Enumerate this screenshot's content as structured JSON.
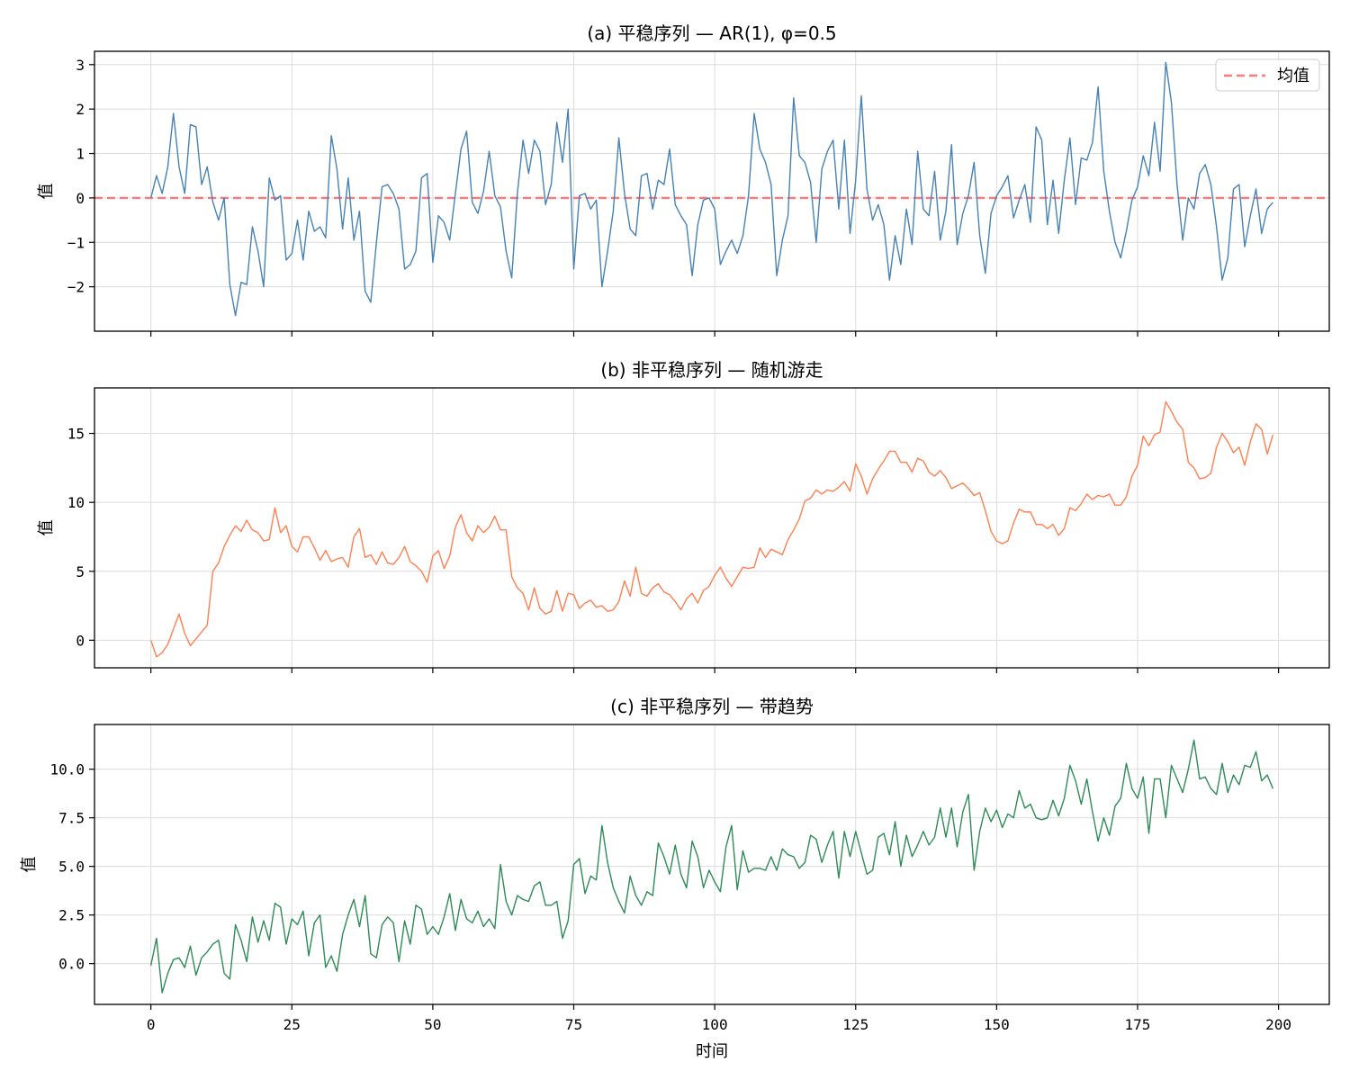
{
  "figure": {
    "xlabel": "时间",
    "grid": true,
    "sharex": true,
    "x_ticks": [
      0,
      25,
      50,
      75,
      100,
      125,
      150,
      175,
      200
    ],
    "xlim": [
      -10,
      209
    ]
  },
  "chart_data": [
    {
      "type": "line",
      "title": "(a) 平稳序列 — AR(1), φ=0.5",
      "ylabel": "值",
      "ylim": [
        -3.0,
        3.3
      ],
      "y_ticks": [
        -2,
        -1,
        0,
        1,
        2,
        3
      ],
      "y_tick_labels": [
        "−2",
        "−1",
        "0",
        "1",
        "2",
        "3"
      ],
      "color": "#4682b4",
      "reference_line": {
        "value": 0,
        "color": "#ff6b6b",
        "style": "dashed",
        "legend": "均值"
      },
      "legend_position": "top-right",
      "values": [
        0.0,
        0.5,
        0.1,
        0.7,
        1.9,
        0.7,
        0.1,
        1.65,
        1.6,
        0.3,
        0.7,
        -0.1,
        -0.5,
        -0.0,
        -1.95,
        -2.65,
        -1.9,
        -1.95,
        -0.65,
        -1.2,
        -2.0,
        0.45,
        -0.05,
        0.05,
        -1.4,
        -1.25,
        -0.5,
        -1.4,
        -0.3,
        -0.75,
        -0.65,
        -0.9,
        1.4,
        0.65,
        -0.7,
        0.45,
        -0.95,
        -0.3,
        -2.1,
        -2.35,
        -1.0,
        0.25,
        0.3,
        0.1,
        -0.25,
        -1.6,
        -1.5,
        -1.2,
        0.45,
        0.55,
        -1.45,
        -0.4,
        -0.55,
        -0.95,
        0.1,
        1.1,
        1.5,
        -0.1,
        -0.35,
        0.15,
        1.05,
        0.05,
        -0.2,
        -1.2,
        -1.8,
        0.1,
        1.3,
        0.55,
        1.3,
        1.05,
        -0.15,
        0.3,
        1.7,
        0.8,
        2.0,
        -1.6,
        0.05,
        0.1,
        -0.25,
        -0.05,
        -2.0,
        -1.2,
        -0.3,
        1.35,
        0.1,
        -0.7,
        -0.85,
        0.5,
        0.55,
        -0.25,
        0.4,
        0.3,
        1.1,
        -0.15,
        -0.4,
        -0.6,
        -1.75,
        -0.6,
        -0.05,
        0.0,
        -0.25,
        -1.5,
        -1.2,
        -0.95,
        -1.25,
        -0.85,
        0.05,
        1.9,
        1.1,
        0.8,
        0.3,
        -1.75,
        -0.95,
        -0.4,
        2.25,
        0.95,
        0.8,
        0.35,
        -1.0,
        0.65,
        1.05,
        1.3,
        -0.25,
        1.3,
        -0.8,
        0.4,
        2.3,
        0.2,
        -0.5,
        -0.15,
        -0.6,
        -1.85,
        -0.85,
        -1.5,
        -0.25,
        -1.05,
        1.05,
        -0.25,
        -0.4,
        0.6,
        -0.95,
        -0.3,
        1.2,
        -1.05,
        -0.35,
        0.05,
        0.8,
        -0.85,
        -1.7,
        -0.35,
        0.05,
        0.25,
        0.5,
        -0.45,
        -0.05,
        0.3,
        -0.55,
        1.6,
        1.3,
        -0.6,
        0.4,
        -0.8,
        0.4,
        1.35,
        -0.15,
        0.9,
        0.85,
        1.25,
        2.5,
        0.6,
        -0.3,
        -1.0,
        -1.35,
        -0.75,
        -0.05,
        0.25,
        0.95,
        0.5,
        1.7,
        0.6,
        3.05,
        2.15,
        0.3,
        -0.95,
        0.0,
        -0.25,
        0.55,
        0.75,
        0.3,
        -0.65,
        -1.85,
        -1.35,
        0.2,
        0.3,
        -1.1,
        -0.4,
        0.2,
        -0.8,
        -0.25,
        -0.1
      ]
    },
    {
      "type": "line",
      "title": "(b) 非平稳序列 — 随机游走",
      "ylabel": "值",
      "ylim": [
        -2.0,
        18.3
      ],
      "y_ticks": [
        0,
        5,
        10,
        15
      ],
      "y_tick_labels": [
        "0",
        "5",
        "10",
        "15"
      ],
      "color": "#ff7f50",
      "values": [
        0.0,
        -1.2,
        -0.9,
        -0.3,
        0.8,
        1.9,
        0.5,
        -0.4,
        0.1,
        0.6,
        1.1,
        5.0,
        5.6,
        6.8,
        7.6,
        8.3,
        7.9,
        8.7,
        8.0,
        7.8,
        7.2,
        7.3,
        9.6,
        7.8,
        8.3,
        6.8,
        6.4,
        7.5,
        7.5,
        6.7,
        5.8,
        6.5,
        5.7,
        5.9,
        6.0,
        5.3,
        7.5,
        8.1,
        6.0,
        6.2,
        5.5,
        6.4,
        5.6,
        5.5,
        6.0,
        6.8,
        5.7,
        5.4,
        5.0,
        4.2,
        6.1,
        6.5,
        5.2,
        6.1,
        8.2,
        9.1,
        7.8,
        7.2,
        8.3,
        7.8,
        8.2,
        9.0,
        8.0,
        8.0,
        4.6,
        3.8,
        3.4,
        2.2,
        3.8,
        2.3,
        1.9,
        2.1,
        3.6,
        2.1,
        3.4,
        3.3,
        2.3,
        2.7,
        2.9,
        2.4,
        2.5,
        2.1,
        2.2,
        2.8,
        4.3,
        3.2,
        5.3,
        3.4,
        3.2,
        3.8,
        4.1,
        3.5,
        3.3,
        2.8,
        2.2,
        3.0,
        3.4,
        2.7,
        3.6,
        3.9,
        4.7,
        5.3,
        4.5,
        3.9,
        4.6,
        5.3,
        5.2,
        5.3,
        6.7,
        6.0,
        6.6,
        6.4,
        6.2,
        7.3,
        8.0,
        8.8,
        10.1,
        10.3,
        10.9,
        10.6,
        10.9,
        10.8,
        11.1,
        11.5,
        10.8,
        12.8,
        11.9,
        10.6,
        11.7,
        12.4,
        13.0,
        13.7,
        13.7,
        12.9,
        12.9,
        12.2,
        13.2,
        13.0,
        12.2,
        11.9,
        12.3,
        11.8,
        11.0,
        11.2,
        11.4,
        11.0,
        10.5,
        10.7,
        9.4,
        7.9,
        7.2,
        7.0,
        7.2,
        8.5,
        9.5,
        9.3,
        9.3,
        8.4,
        8.4,
        8.1,
        8.4,
        7.6,
        8.1,
        9.6,
        9.4,
        9.9,
        10.6,
        10.2,
        10.5,
        10.4,
        10.6,
        9.8,
        9.8,
        10.4,
        11.9,
        12.7,
        14.8,
        14.1,
        14.9,
        15.1,
        17.3,
        16.6,
        15.8,
        15.3,
        12.9,
        12.5,
        11.7,
        11.8,
        12.1,
        14.0,
        15.0,
        14.4,
        13.6,
        14.0,
        12.7,
        14.4,
        15.7,
        15.3,
        13.5,
        14.9
      ]
    },
    {
      "type": "line",
      "title": "(c) 非平稳序列 — 带趋势",
      "ylabel": "值",
      "ylim": [
        -2.1,
        12.3
      ],
      "y_ticks": [
        0.0,
        2.5,
        5.0,
        7.5,
        10.0
      ],
      "y_tick_labels": [
        "0.0",
        "2.5",
        "5.0",
        "7.5",
        "10.0"
      ],
      "color": "#2e8b57",
      "values": [
        -0.1,
        1.3,
        -1.5,
        -0.5,
        0.2,
        0.3,
        -0.2,
        0.9,
        -0.6,
        0.3,
        0.6,
        1.0,
        1.2,
        -0.5,
        -0.8,
        2.0,
        1.2,
        0.1,
        2.4,
        1.1,
        2.2,
        1.2,
        3.1,
        2.9,
        1.0,
        2.3,
        2.0,
        2.7,
        0.4,
        2.1,
        2.5,
        -0.2,
        0.4,
        -0.4,
        1.5,
        2.5,
        3.3,
        1.9,
        3.5,
        0.5,
        0.3,
        2.0,
        2.4,
        2.1,
        0.1,
        2.2,
        1.0,
        3.0,
        2.8,
        1.5,
        1.9,
        1.5,
        2.4,
        3.6,
        1.7,
        3.3,
        2.3,
        2.1,
        2.7,
        1.9,
        2.3,
        1.8,
        5.1,
        3.2,
        2.5,
        3.5,
        3.3,
        3.2,
        4.0,
        4.2,
        3.0,
        3.0,
        3.2,
        1.3,
        2.2,
        5.1,
        5.4,
        3.6,
        4.5,
        4.3,
        7.1,
        5.2,
        3.9,
        3.2,
        2.6,
        4.5,
        3.5,
        3.0,
        3.7,
        3.5,
        6.2,
        5.5,
        4.6,
        6.1,
        4.6,
        3.9,
        6.3,
        5.5,
        3.9,
        4.8,
        4.2,
        3.7,
        6.0,
        7.1,
        3.8,
        5.8,
        4.7,
        4.9,
        4.9,
        4.8,
        5.5,
        4.8,
        5.9,
        5.6,
        5.5,
        4.9,
        5.2,
        6.6,
        6.4,
        5.2,
        6.1,
        6.8,
        4.4,
        6.8,
        5.5,
        6.8,
        5.7,
        4.6,
        4.8,
        6.5,
        6.7,
        5.6,
        7.3,
        5.0,
        6.6,
        5.5,
        6.1,
        6.8,
        6.1,
        6.5,
        8.0,
        6.5,
        8.0,
        6.0,
        7.8,
        8.7,
        4.8,
        6.8,
        8.0,
        7.3,
        7.9,
        7.0,
        7.7,
        7.5,
        8.9,
        8.0,
        8.2,
        7.5,
        7.4,
        7.5,
        8.4,
        7.6,
        8.5,
        10.2,
        9.4,
        8.2,
        9.5,
        7.8,
        6.3,
        7.5,
        6.6,
        8.1,
        8.5,
        10.3,
        9.0,
        8.5,
        9.6,
        6.7,
        9.5,
        9.5,
        7.5,
        10.2,
        9.5,
        8.8,
        10.0,
        11.5,
        9.5,
        9.6,
        9.0,
        8.7,
        10.3,
        8.8,
        9.7,
        9.2,
        10.2,
        10.1,
        10.9,
        9.4,
        9.7,
        9.0
      ]
    }
  ]
}
